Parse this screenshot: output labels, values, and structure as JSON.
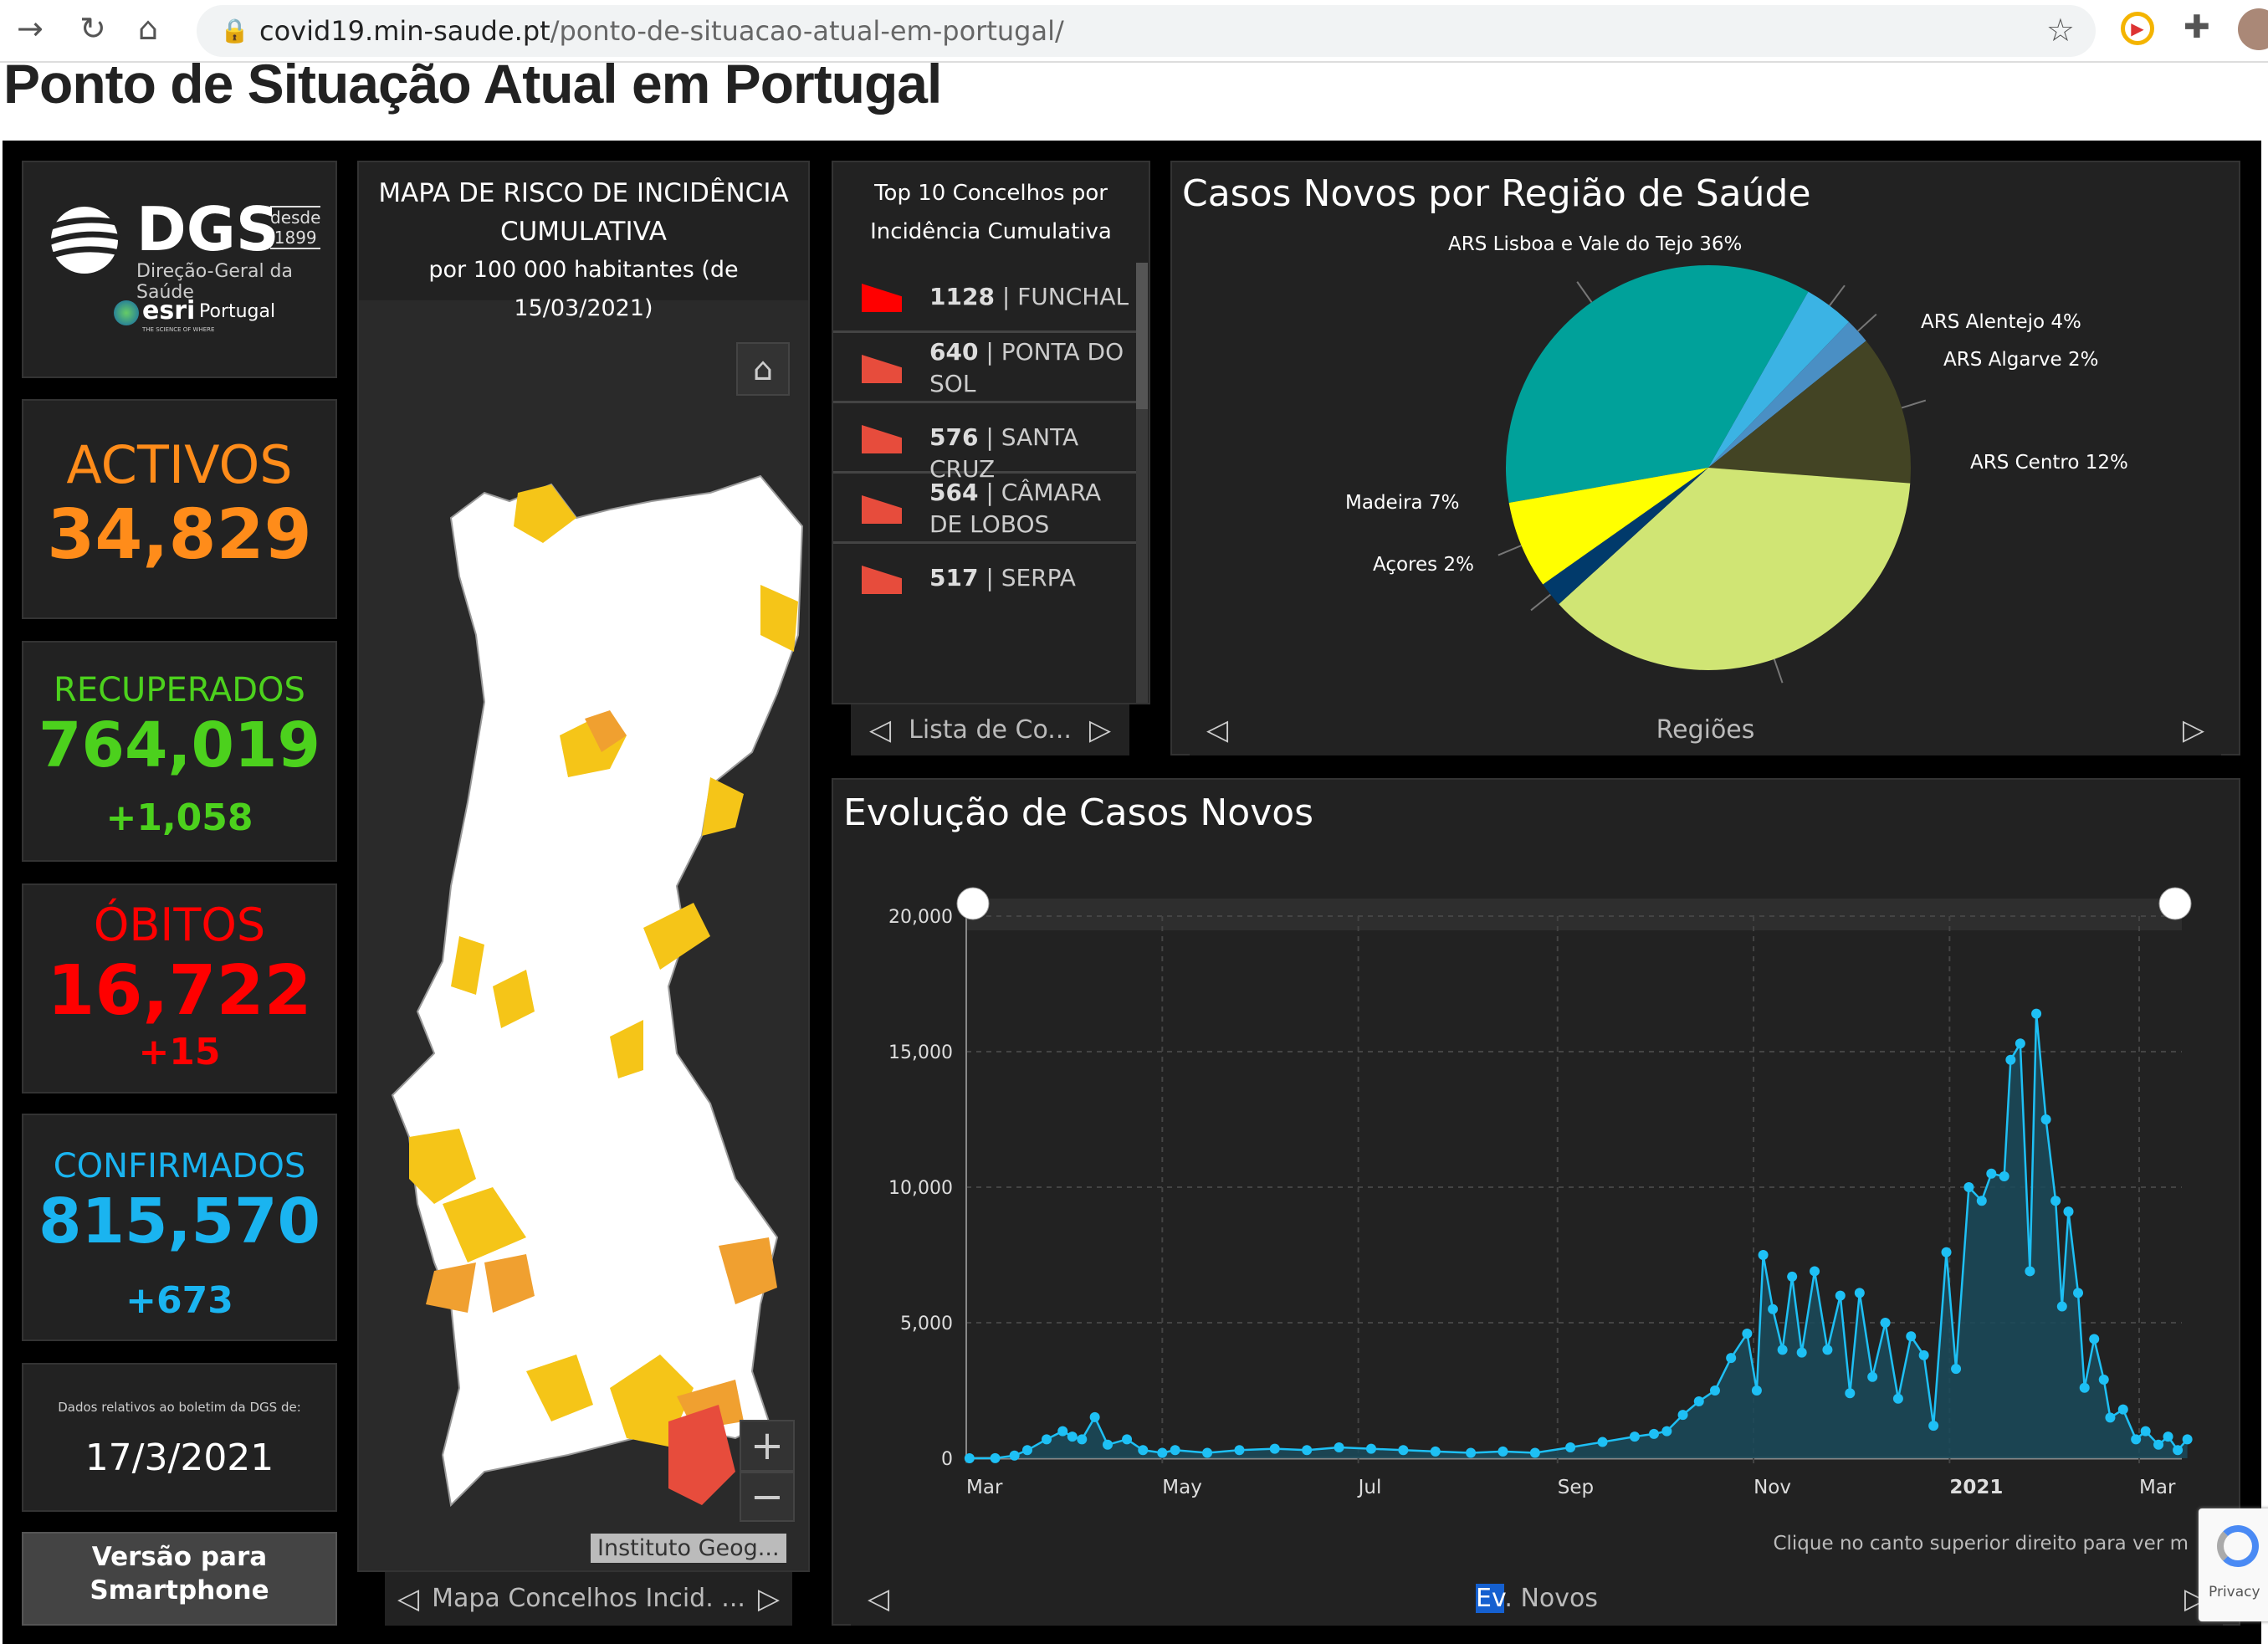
{
  "browser": {
    "url_domain": "covid19.min-saude.pt",
    "url_path": "/ponto-de-situacao-atual-em-portugal/"
  },
  "page": {
    "title": "Ponto de Situação Atual em Portugal"
  },
  "logo": {
    "dgs": "DGS",
    "desde": "desde",
    "year": "1899",
    "subtitle": "Direção-Geral da Saúde",
    "esri": "esri",
    "esri_country": "Portugal",
    "esri_tag": "THE SCIENCE OF WHERE"
  },
  "stats": {
    "activos": {
      "label": "ACTIVOS",
      "value": "34,829",
      "color": "#ff8c1a"
    },
    "recuperados": {
      "label": "RECUPERADOS",
      "value": "764,019",
      "increment": "+1,058",
      "color": "#4cd11d"
    },
    "obitos": {
      "label": "ÓBITOS",
      "value": "16,722",
      "increment": "+15",
      "color": "#ff0000"
    },
    "confirmados": {
      "label": "CONFIRMADOS",
      "value": "815,570",
      "increment": "+673",
      "color": "#1ab4f0"
    }
  },
  "bulletin": {
    "label": "Dados relativos ao boletim da DGS de:",
    "date": "17/3/2021"
  },
  "smartphone_button": "Versão para Smartphone",
  "map": {
    "title_line1": "MAPA DE RISCO DE INCIDÊNCIA",
    "title_line2": "CUMULATIVA",
    "subtitle": "por 100 000 habitantes (de 15/03/2021)",
    "attribution": "Instituto Geog...",
    "zoom_in": "+",
    "zoom_out": "−",
    "footer": "Mapa Concelhos Incid. ..."
  },
  "top10": {
    "title_line1": "Top 10 Concelhos por",
    "title_line2": "Incidência Cumulativa",
    "items": [
      {
        "value": "1128",
        "name": "FUNCHAL",
        "color": "#ff0000"
      },
      {
        "value": "640",
        "name": "PONTA DO SOL",
        "color": "#e74c3c"
      },
      {
        "value": "576",
        "name": "SANTA CRUZ",
        "color": "#e74c3c"
      },
      {
        "value": "564",
        "name": "CÂMARA DE LOBOS",
        "color": "#e74c3c"
      },
      {
        "value": "517",
        "name": "SERPA",
        "color": "#e74c3c"
      }
    ],
    "footer": "Lista de Co..."
  },
  "pie": {
    "title": "Casos Novos por Região de Saúde",
    "footer": "Regiões"
  },
  "evolution": {
    "title": "Evolução de Casos Novos",
    "note": "Clique no canto superior direito para ver m",
    "footer_highlight": "Ev",
    "footer_rest": ". Novos"
  },
  "chart_data": [
    {
      "type": "pie",
      "title": "Casos Novos por Região de Saúde",
      "slices": [
        {
          "label": "ARS Lisboa e Vale do Tejo 36%",
          "value": 36,
          "color": "#00a19a"
        },
        {
          "label": "ARS Alentejo 4%",
          "value": 4,
          "color": "#3bb3e4"
        },
        {
          "label": "ARS Algarve 2%",
          "value": 2,
          "color": "#4a8fc4"
        },
        {
          "label": "ARS Centro 12%",
          "value": 12,
          "color": "#434424"
        },
        {
          "label": "",
          "value": 37,
          "color": "#d0e574"
        },
        {
          "label": "Açores 2%",
          "value": 2,
          "color": "#013a6b"
        },
        {
          "label": "Madeira 7%",
          "value": 7,
          "color": "#ffff00"
        }
      ]
    },
    {
      "type": "area",
      "title": "Evolução de Casos Novos",
      "ylim": [
        0,
        20000
      ],
      "yticks": [
        "0",
        "5,000",
        "10,000",
        "15,000",
        "20,000"
      ],
      "xticks": [
        {
          "date": "2020-03-01",
          "label": "Mar"
        },
        {
          "date": "2020-05-01",
          "label": "May"
        },
        {
          "date": "2020-07-01",
          "label": "Jul"
        },
        {
          "date": "2020-09-01",
          "label": "Sep"
        },
        {
          "date": "2020-11-01",
          "label": "Nov"
        },
        {
          "date": "2021-01-01",
          "label": "2021"
        },
        {
          "date": "2021-03-01",
          "label": "Mar"
        }
      ],
      "xlim": [
        "2020-03-01",
        "2021-03-17"
      ],
      "grid": true,
      "color": "#1ec0f5",
      "points": [
        [
          "2020-03-02",
          0
        ],
        [
          "2020-03-10",
          5
        ],
        [
          "2020-03-16",
          100
        ],
        [
          "2020-03-20",
          300
        ],
        [
          "2020-03-26",
          700
        ],
        [
          "2020-03-31",
          1000
        ],
        [
          "2020-04-03",
          800
        ],
        [
          "2020-04-06",
          700
        ],
        [
          "2020-04-10",
          1516
        ],
        [
          "2020-04-14",
          500
        ],
        [
          "2020-04-20",
          700
        ],
        [
          "2020-04-25",
          300
        ],
        [
          "2020-05-01",
          200
        ],
        [
          "2020-05-05",
          300
        ],
        [
          "2020-05-15",
          200
        ],
        [
          "2020-05-25",
          300
        ],
        [
          "2020-06-05",
          350
        ],
        [
          "2020-06-15",
          300
        ],
        [
          "2020-06-25",
          400
        ],
        [
          "2020-07-05",
          350
        ],
        [
          "2020-07-15",
          300
        ],
        [
          "2020-07-25",
          250
        ],
        [
          "2020-08-05",
          200
        ],
        [
          "2020-08-15",
          250
        ],
        [
          "2020-08-25",
          200
        ],
        [
          "2020-09-05",
          400
        ],
        [
          "2020-09-15",
          600
        ],
        [
          "2020-09-25",
          800
        ],
        [
          "2020-10-01",
          900
        ],
        [
          "2020-10-05",
          1000
        ],
        [
          "2020-10-10",
          1600
        ],
        [
          "2020-10-15",
          2100
        ],
        [
          "2020-10-20",
          2500
        ],
        [
          "2020-10-25",
          3700
        ],
        [
          "2020-10-30",
          4600
        ],
        [
          "2020-11-02",
          2500
        ],
        [
          "2020-11-04",
          7500
        ],
        [
          "2020-11-07",
          5500
        ],
        [
          "2020-11-10",
          4000
        ],
        [
          "2020-11-13",
          6700
        ],
        [
          "2020-11-16",
          3900
        ],
        [
          "2020-11-20",
          6900
        ],
        [
          "2020-11-24",
          4000
        ],
        [
          "2020-11-28",
          6000
        ],
        [
          "2020-12-01",
          2400
        ],
        [
          "2020-12-04",
          6100
        ],
        [
          "2020-12-08",
          3000
        ],
        [
          "2020-12-12",
          5000
        ],
        [
          "2020-12-16",
          2200
        ],
        [
          "2020-12-20",
          4500
        ],
        [
          "2020-12-24",
          3800
        ],
        [
          "2020-12-27",
          1200
        ],
        [
          "2020-12-31",
          7600
        ],
        [
          "2021-01-03",
          3300
        ],
        [
          "2021-01-07",
          10000
        ],
        [
          "2021-01-11",
          9500
        ],
        [
          "2021-01-14",
          10500
        ],
        [
          "2021-01-18",
          10400
        ],
        [
          "2021-01-20",
          14700
        ],
        [
          "2021-01-23",
          15300
        ],
        [
          "2021-01-26",
          6900
        ],
        [
          "2021-01-28",
          16400
        ],
        [
          "2021-01-31",
          12500
        ],
        [
          "2021-02-03",
          9500
        ],
        [
          "2021-02-05",
          5600
        ],
        [
          "2021-02-07",
          9100
        ],
        [
          "2021-02-10",
          6100
        ],
        [
          "2021-02-12",
          2600
        ],
        [
          "2021-02-15",
          4400
        ],
        [
          "2021-02-18",
          2900
        ],
        [
          "2021-02-20",
          1500
        ],
        [
          "2021-02-24",
          1800
        ],
        [
          "2021-02-28",
          700
        ],
        [
          "2021-03-03",
          1000
        ],
        [
          "2021-03-07",
          500
        ],
        [
          "2021-03-10",
          800
        ],
        [
          "2021-03-13",
          300
        ],
        [
          "2021-03-16",
          700
        ]
      ]
    }
  ]
}
